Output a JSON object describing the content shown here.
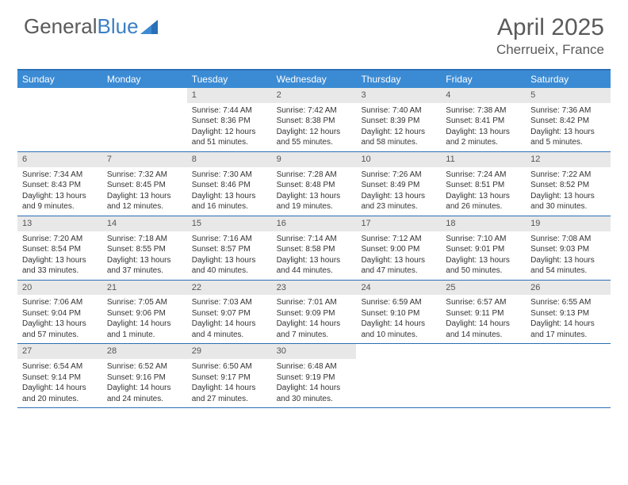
{
  "brand": {
    "part1": "General",
    "part2": "Blue"
  },
  "title": "April 2025",
  "location": "Cherrueix, France",
  "colors": {
    "header_bg": "#3b8bd4",
    "border": "#2b6fb5",
    "daynum_bg": "#e8e8e8",
    "text": "#333333",
    "muted": "#5a5a5a"
  },
  "weekdays": [
    "Sunday",
    "Monday",
    "Tuesday",
    "Wednesday",
    "Thursday",
    "Friday",
    "Saturday"
  ],
  "weeks": [
    [
      {
        "n": "",
        "sr": "",
        "ss": "",
        "dl": ""
      },
      {
        "n": "",
        "sr": "",
        "ss": "",
        "dl": ""
      },
      {
        "n": "1",
        "sr": "Sunrise: 7:44 AM",
        "ss": "Sunset: 8:36 PM",
        "dl": "Daylight: 12 hours and 51 minutes."
      },
      {
        "n": "2",
        "sr": "Sunrise: 7:42 AM",
        "ss": "Sunset: 8:38 PM",
        "dl": "Daylight: 12 hours and 55 minutes."
      },
      {
        "n": "3",
        "sr": "Sunrise: 7:40 AM",
        "ss": "Sunset: 8:39 PM",
        "dl": "Daylight: 12 hours and 58 minutes."
      },
      {
        "n": "4",
        "sr": "Sunrise: 7:38 AM",
        "ss": "Sunset: 8:41 PM",
        "dl": "Daylight: 13 hours and 2 minutes."
      },
      {
        "n": "5",
        "sr": "Sunrise: 7:36 AM",
        "ss": "Sunset: 8:42 PM",
        "dl": "Daylight: 13 hours and 5 minutes."
      }
    ],
    [
      {
        "n": "6",
        "sr": "Sunrise: 7:34 AM",
        "ss": "Sunset: 8:43 PM",
        "dl": "Daylight: 13 hours and 9 minutes."
      },
      {
        "n": "7",
        "sr": "Sunrise: 7:32 AM",
        "ss": "Sunset: 8:45 PM",
        "dl": "Daylight: 13 hours and 12 minutes."
      },
      {
        "n": "8",
        "sr": "Sunrise: 7:30 AM",
        "ss": "Sunset: 8:46 PM",
        "dl": "Daylight: 13 hours and 16 minutes."
      },
      {
        "n": "9",
        "sr": "Sunrise: 7:28 AM",
        "ss": "Sunset: 8:48 PM",
        "dl": "Daylight: 13 hours and 19 minutes."
      },
      {
        "n": "10",
        "sr": "Sunrise: 7:26 AM",
        "ss": "Sunset: 8:49 PM",
        "dl": "Daylight: 13 hours and 23 minutes."
      },
      {
        "n": "11",
        "sr": "Sunrise: 7:24 AM",
        "ss": "Sunset: 8:51 PM",
        "dl": "Daylight: 13 hours and 26 minutes."
      },
      {
        "n": "12",
        "sr": "Sunrise: 7:22 AM",
        "ss": "Sunset: 8:52 PM",
        "dl": "Daylight: 13 hours and 30 minutes."
      }
    ],
    [
      {
        "n": "13",
        "sr": "Sunrise: 7:20 AM",
        "ss": "Sunset: 8:54 PM",
        "dl": "Daylight: 13 hours and 33 minutes."
      },
      {
        "n": "14",
        "sr": "Sunrise: 7:18 AM",
        "ss": "Sunset: 8:55 PM",
        "dl": "Daylight: 13 hours and 37 minutes."
      },
      {
        "n": "15",
        "sr": "Sunrise: 7:16 AM",
        "ss": "Sunset: 8:57 PM",
        "dl": "Daylight: 13 hours and 40 minutes."
      },
      {
        "n": "16",
        "sr": "Sunrise: 7:14 AM",
        "ss": "Sunset: 8:58 PM",
        "dl": "Daylight: 13 hours and 44 minutes."
      },
      {
        "n": "17",
        "sr": "Sunrise: 7:12 AM",
        "ss": "Sunset: 9:00 PM",
        "dl": "Daylight: 13 hours and 47 minutes."
      },
      {
        "n": "18",
        "sr": "Sunrise: 7:10 AM",
        "ss": "Sunset: 9:01 PM",
        "dl": "Daylight: 13 hours and 50 minutes."
      },
      {
        "n": "19",
        "sr": "Sunrise: 7:08 AM",
        "ss": "Sunset: 9:03 PM",
        "dl": "Daylight: 13 hours and 54 minutes."
      }
    ],
    [
      {
        "n": "20",
        "sr": "Sunrise: 7:06 AM",
        "ss": "Sunset: 9:04 PM",
        "dl": "Daylight: 13 hours and 57 minutes."
      },
      {
        "n": "21",
        "sr": "Sunrise: 7:05 AM",
        "ss": "Sunset: 9:06 PM",
        "dl": "Daylight: 14 hours and 1 minute."
      },
      {
        "n": "22",
        "sr": "Sunrise: 7:03 AM",
        "ss": "Sunset: 9:07 PM",
        "dl": "Daylight: 14 hours and 4 minutes."
      },
      {
        "n": "23",
        "sr": "Sunrise: 7:01 AM",
        "ss": "Sunset: 9:09 PM",
        "dl": "Daylight: 14 hours and 7 minutes."
      },
      {
        "n": "24",
        "sr": "Sunrise: 6:59 AM",
        "ss": "Sunset: 9:10 PM",
        "dl": "Daylight: 14 hours and 10 minutes."
      },
      {
        "n": "25",
        "sr": "Sunrise: 6:57 AM",
        "ss": "Sunset: 9:11 PM",
        "dl": "Daylight: 14 hours and 14 minutes."
      },
      {
        "n": "26",
        "sr": "Sunrise: 6:55 AM",
        "ss": "Sunset: 9:13 PM",
        "dl": "Daylight: 14 hours and 17 minutes."
      }
    ],
    [
      {
        "n": "27",
        "sr": "Sunrise: 6:54 AM",
        "ss": "Sunset: 9:14 PM",
        "dl": "Daylight: 14 hours and 20 minutes."
      },
      {
        "n": "28",
        "sr": "Sunrise: 6:52 AM",
        "ss": "Sunset: 9:16 PM",
        "dl": "Daylight: 14 hours and 24 minutes."
      },
      {
        "n": "29",
        "sr": "Sunrise: 6:50 AM",
        "ss": "Sunset: 9:17 PM",
        "dl": "Daylight: 14 hours and 27 minutes."
      },
      {
        "n": "30",
        "sr": "Sunrise: 6:48 AM",
        "ss": "Sunset: 9:19 PM",
        "dl": "Daylight: 14 hours and 30 minutes."
      },
      {
        "n": "",
        "sr": "",
        "ss": "",
        "dl": ""
      },
      {
        "n": "",
        "sr": "",
        "ss": "",
        "dl": ""
      },
      {
        "n": "",
        "sr": "",
        "ss": "",
        "dl": ""
      }
    ]
  ]
}
